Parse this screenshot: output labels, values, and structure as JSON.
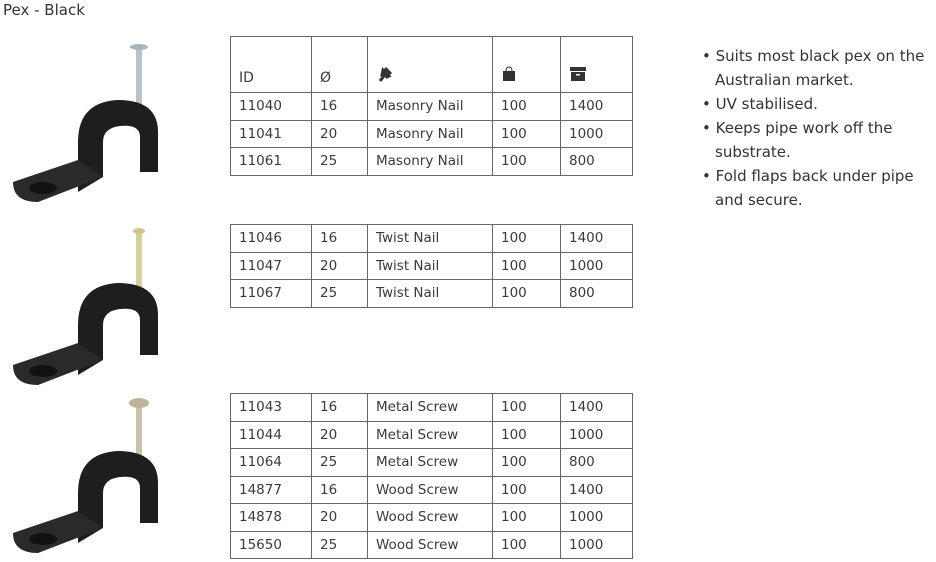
{
  "title": "Pex - Black",
  "header": {
    "id": "ID",
    "diameter": "Ø",
    "type_icon": "pin-icon",
    "inner_icon": "bag-icon",
    "carton_icon": "box-icon"
  },
  "tables": [
    [
      [
        "11040",
        "16",
        "Masonry Nail",
        "100",
        "1400"
      ],
      [
        "11041",
        "20",
        "Masonry Nail",
        "100",
        "1000"
      ],
      [
        "11061",
        "25",
        "Masonry Nail",
        "100",
        "800"
      ]
    ],
    [
      [
        "11046",
        "16",
        "Twist Nail",
        "100",
        "1400"
      ],
      [
        "11047",
        "20",
        "Twist Nail",
        "100",
        "1000"
      ],
      [
        "11067",
        "25",
        "Twist Nail",
        "100",
        "800"
      ]
    ],
    [
      [
        "11043",
        "16",
        "Metal Screw",
        "100",
        "1400"
      ],
      [
        "11044",
        "20",
        "Metal Screw",
        "100",
        "1000"
      ],
      [
        "11064",
        "25",
        "Metal Screw",
        "100",
        "800"
      ],
      [
        "14877",
        "16",
        "Wood Screw",
        "100",
        "1400"
      ],
      [
        "14878",
        "20",
        "Wood Screw",
        "100",
        "1000"
      ],
      [
        "15650",
        "25",
        "Wood Screw",
        "100",
        "1000"
      ]
    ]
  ],
  "bullets": [
    "Suits most black pex on the Australian market.",
    "UV stabilised.",
    "Keeps pipe work off the substrate.",
    "Fold flaps back under pipe and secure."
  ],
  "images": [
    {
      "fastener": "Masonry Nail",
      "color": "#b9c3cc"
    },
    {
      "fastener": "Twist Nail",
      "color": "#d9cf9a"
    },
    {
      "fastener": "Metal Screw",
      "color": "#c9c2a8"
    }
  ]
}
